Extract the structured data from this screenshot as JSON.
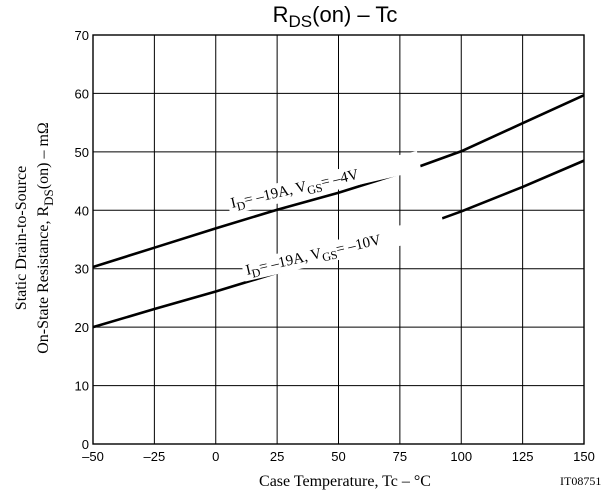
{
  "chart_data": {
    "type": "line",
    "title": "R",
    "title_sub": "DS",
    "title_rest": "(on)  –  Tc",
    "xlabel": "Case Temperature, Tc  –  °C",
    "ylabel_line1": "Static Drain-to-Source",
    "ylabel_line2_a": "On-State Resistance, R",
    "ylabel_line2_sub": "DS",
    "ylabel_line2_b": "(on)  –  mΩ",
    "xlim": [
      -50,
      150
    ],
    "ylim": [
      0,
      70
    ],
    "xticks": [
      "–50",
      "–25",
      "0",
      "25",
      "50",
      "75",
      "100",
      "125",
      "150"
    ],
    "yticks": [
      "0",
      "10",
      "20",
      "30",
      "40",
      "50",
      "60",
      "70"
    ],
    "grid": true,
    "series": [
      {
        "label_a": "I",
        "label_sub1": "D",
        "label_b": "= –19A, V",
        "label_sub2": "GS",
        "label_c": "= –4V",
        "x": [
          -50,
          -25,
          0,
          25,
          50,
          75,
          100,
          125,
          150
        ],
        "y": [
          30.3,
          33.6,
          36.9,
          40.1,
          43.0,
          46.3,
          50.1,
          54.9,
          59.7
        ]
      },
      {
        "label_a": "I",
        "label_sub1": "D",
        "label_b": "= –19A, V",
        "label_sub2": "GS",
        "label_c": "= –10V",
        "x": [
          -50,
          -25,
          0,
          25,
          50,
          75,
          100,
          125,
          150
        ],
        "y": [
          20.0,
          23.1,
          26.1,
          29.3,
          32.6,
          36.0,
          39.8,
          44.0,
          48.5
        ]
      }
    ],
    "code": "IT08751"
  }
}
